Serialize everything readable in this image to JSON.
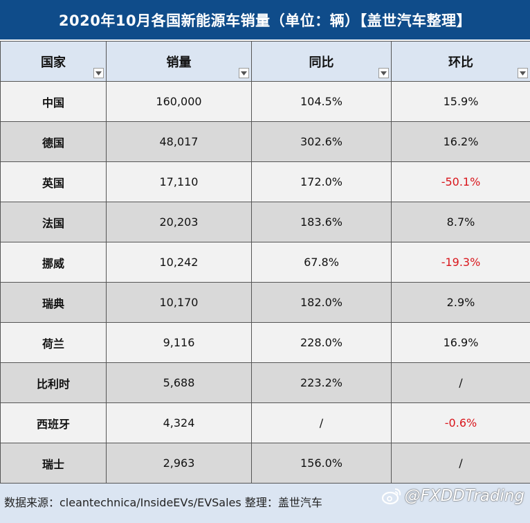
{
  "title": "2020年10月各国新能源车销量（单位：辆）【盖世汽车整理】",
  "colors": {
    "title_bg": "#0f4c8a",
    "header_bg": "#dbe5f2",
    "row_light": "#f2f2f2",
    "row_dark": "#d9d9d9",
    "negative": "#d9161c"
  },
  "headers": [
    "国家",
    "销量",
    "同比",
    "环比"
  ],
  "filter_icon": "dropdown-filter-icon",
  "rows": [
    {
      "country": "中国",
      "sales": "160,000",
      "yoy": "104.5%",
      "mom": "15.9%"
    },
    {
      "country": "德国",
      "sales": "48,017",
      "yoy": "302.6%",
      "mom": "16.2%"
    },
    {
      "country": "英国",
      "sales": "17,110",
      "yoy": "172.0%",
      "mom": "-50.1%"
    },
    {
      "country": "法国",
      "sales": "20,203",
      "yoy": "183.6%",
      "mom": "8.7%"
    },
    {
      "country": "挪威",
      "sales": "10,242",
      "yoy": "67.8%",
      "mom": "-19.3%"
    },
    {
      "country": "瑞典",
      "sales": "10,170",
      "yoy": "182.0%",
      "mom": "2.9%"
    },
    {
      "country": "荷兰",
      "sales": "9,116",
      "yoy": "228.0%",
      "mom": "16.9%"
    },
    {
      "country": "比利时",
      "sales": "5,688",
      "yoy": "223.2%",
      "mom": "/"
    },
    {
      "country": "西班牙",
      "sales": "4,324",
      "yoy": "/",
      "mom": "-0.6%"
    },
    {
      "country": "瑞士",
      "sales": "2,963",
      "yoy": "156.0%",
      "mom": "/"
    }
  ],
  "footer": {
    "source": "数据来源：cleantechnica/InsideEVs/EVSales 整理：盖世汽车",
    "watermark": "@FXDDTrading",
    "watermark_icon": "weibo-icon"
  }
}
